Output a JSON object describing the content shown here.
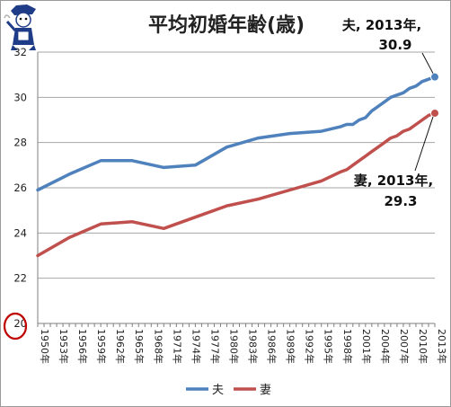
{
  "chart_data": {
    "type": "line",
    "title": "平均初婚年齢(歳)",
    "xlabel": "",
    "ylabel": "",
    "ylim": [
      20,
      32
    ],
    "yticks": [
      20,
      22,
      24,
      26,
      28,
      30,
      32
    ],
    "categories": [
      "1950年",
      "1953年",
      "1956年",
      "1959年",
      "1962年",
      "1965年",
      "1968年",
      "1971年",
      "1974年",
      "1977年",
      "1980年",
      "1983年",
      "1986年",
      "1989年",
      "1992年",
      "1995年",
      "1998年",
      "2001年",
      "2004年",
      "2007年",
      "2010年",
      "2013年"
    ],
    "series": [
      {
        "name": "夫",
        "color": "#4f81bd",
        "x": [
          1950,
          1955,
          1960,
          1965,
          1970,
          1975,
          1980,
          1985,
          1990,
          1995,
          1998,
          1999,
          2000,
          2001,
          2002,
          2003,
          2004,
          2005,
          2006,
          2007,
          2008,
          2009,
          2010,
          2011,
          2012,
          2013
        ],
        "values": [
          25.9,
          26.6,
          27.2,
          27.2,
          26.9,
          27.0,
          27.8,
          28.2,
          28.4,
          28.5,
          28.7,
          28.8,
          28.8,
          29.0,
          29.1,
          29.4,
          29.6,
          29.8,
          30.0,
          30.1,
          30.2,
          30.4,
          30.5,
          30.7,
          30.8,
          30.9
        ]
      },
      {
        "name": "妻",
        "color": "#c0504d",
        "x": [
          1950,
          1955,
          1960,
          1965,
          1970,
          1975,
          1980,
          1985,
          1990,
          1995,
          1998,
          1999,
          2000,
          2001,
          2002,
          2003,
          2004,
          2005,
          2006,
          2007,
          2008,
          2009,
          2010,
          2011,
          2012,
          2013
        ],
        "values": [
          23.0,
          23.8,
          24.4,
          24.5,
          24.2,
          24.7,
          25.2,
          25.5,
          25.9,
          26.3,
          26.7,
          26.8,
          27.0,
          27.2,
          27.4,
          27.6,
          27.8,
          28.0,
          28.2,
          28.3,
          28.5,
          28.6,
          28.8,
          29.0,
          29.2,
          29.3
        ]
      }
    ],
    "annotations": [
      {
        "line1": "夫, 2013年,",
        "line2": "30.9"
      },
      {
        "line1": "妻, 2013年,",
        "line2": "29.3"
      }
    ],
    "legend": {
      "position": "bottom",
      "entries": [
        "夫",
        "妻"
      ]
    },
    "grid": true,
    "axis_marker_color": "#c00000"
  }
}
